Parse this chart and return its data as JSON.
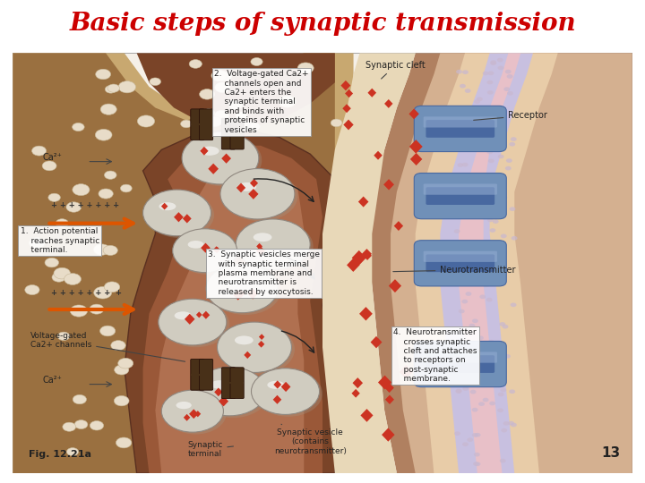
{
  "title": "Basic steps of synaptic transmission",
  "title_color": "#cc0000",
  "title_fontsize": 20,
  "title_fontweight": "bold",
  "title_fontstyle": "italic",
  "bg_color": "#ffffff",
  "border_color": "#999999",
  "fig_number": "13",
  "fig_label": "Fig. 12.21a",
  "panel_bg": "#f5f0e8",
  "axon_outer": "#c8a870",
  "axon_inner": "#9a7040",
  "terminal_dark": "#7a4428",
  "terminal_mid": "#9a5838",
  "terminal_light": "#b07050",
  "post_outer_brown": "#b08060",
  "post_mid_beige": "#d4b090",
  "post_light_beige": "#e8cca8",
  "membrane_lavender": "#c8c0e0",
  "membrane_pink": "#e8c0c8",
  "receptor_blue": "#7090b8",
  "receptor_dark": "#4868a0",
  "cleft_color": "#e8d8b8",
  "vesicle_gray": "#c8c4b8",
  "vesicle_highlight": "#e8e4d8",
  "red_diamond": "#cc3322",
  "cream_dot": "#e8dcc8",
  "channel_dark": "#483018",
  "orange_arrow": "#dd5500",
  "text_dark": "#222222",
  "line_color": "#444444",
  "box_bg": "#ffffff",
  "box_edge": "#999999"
}
